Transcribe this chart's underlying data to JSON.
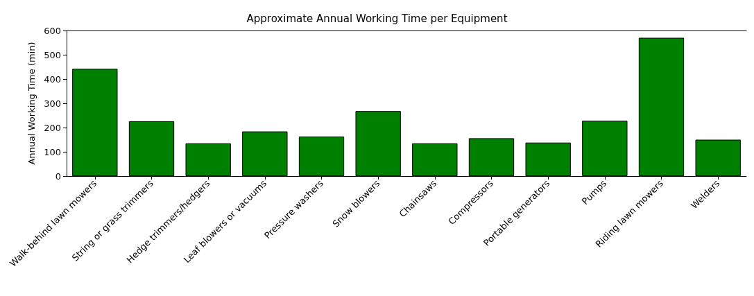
{
  "chart_data": {
    "type": "bar",
    "title": "Approximate Annual Working Time per Equipment",
    "ylabel": "Annual Working Time (min)",
    "categories": [
      "Walk-behind lawn mowers",
      "String or grass trimmers",
      "Hedge trimmers/hedgers",
      "Leaf blowers or vacuums",
      "Pressure washers",
      "Snow blowers",
      "Chainsaws",
      "Compressors",
      "Portable generators",
      "Pumps",
      "Riding lawn mowers",
      "Welders"
    ],
    "values": [
      442,
      226,
      135,
      184,
      163,
      268,
      135,
      156,
      138,
      228,
      570,
      150
    ],
    "color": "#008000",
    "ylim": [
      0,
      600
    ],
    "yticks": [
      0,
      100,
      200,
      300,
      400,
      500,
      600
    ],
    "grid": false
  }
}
